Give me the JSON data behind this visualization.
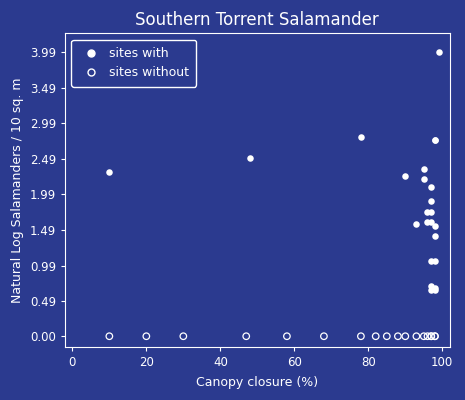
{
  "title": "Southern Torrent Salamander",
  "xlabel": "Canopy closure (%)",
  "ylabel": "Natural Log Salamanders / 10 sq. m",
  "bg_color": "#2B3A8F",
  "text_color": "white",
  "point_color": "white",
  "yticks": [
    0.0,
    0.49,
    0.99,
    1.49,
    1.99,
    2.49,
    2.99,
    3.49,
    3.99
  ],
  "xticks": [
    0,
    20,
    40,
    60,
    80,
    100
  ],
  "xlim": [
    -2,
    102
  ],
  "ylim": [
    -0.15,
    4.25
  ],
  "sites_with_x": [
    10,
    48,
    78,
    90,
    93,
    95,
    95,
    96,
    96,
    97,
    97,
    97,
    97,
    97,
    97,
    97,
    98,
    98,
    98,
    98,
    98,
    98,
    98,
    99
  ],
  "sites_with_y": [
    2.3,
    2.5,
    2.8,
    2.25,
    1.58,
    2.35,
    2.2,
    1.6,
    1.75,
    0.65,
    0.7,
    1.05,
    1.6,
    1.75,
    1.9,
    2.1,
    0.65,
    0.68,
    1.05,
    1.55,
    1.4,
    2.75,
    2.75,
    3.99
  ],
  "sites_without_x": [
    10,
    20,
    30,
    47,
    58,
    68,
    78,
    82,
    85,
    88,
    90,
    93,
    95,
    96,
    97,
    97,
    98,
    98
  ],
  "sites_without_y": [
    0.0,
    0.0,
    0.0,
    0.0,
    0.0,
    0.0,
    0.0,
    0.0,
    0.0,
    0.0,
    0.0,
    0.0,
    0.0,
    0.0,
    0.0,
    0.0,
    0.0,
    0.0
  ],
  "legend_label_with": "sites with",
  "legend_label_without": "sites without",
  "title_fontsize": 12,
  "label_fontsize": 9,
  "tick_fontsize": 8.5
}
